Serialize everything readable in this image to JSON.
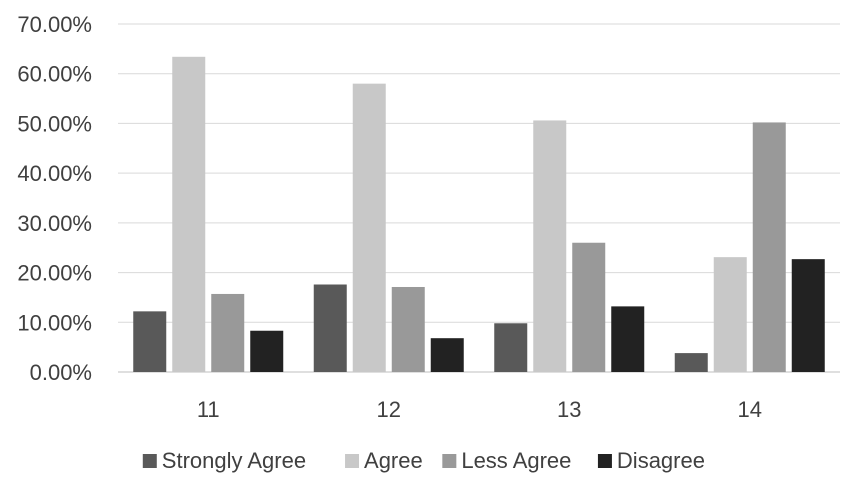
{
  "chart_data": {
    "type": "bar",
    "categories": [
      "11",
      "12",
      "13",
      "14"
    ],
    "series": [
      {
        "name": "Strongly Agree",
        "color": "#595959",
        "values": [
          12.2,
          17.6,
          9.8,
          3.8
        ]
      },
      {
        "name": "Agree",
        "color": "#c8c8c8",
        "values": [
          63.4,
          58.0,
          50.6,
          23.1
        ]
      },
      {
        "name": "Less Agree",
        "color": "#999999",
        "values": [
          15.7,
          17.1,
          26.0,
          50.2
        ]
      },
      {
        "name": "Disagree",
        "color": "#222222",
        "values": [
          8.3,
          6.8,
          13.2,
          22.7
        ]
      }
    ],
    "y_ticks": [
      "0.00%",
      "10.00%",
      "20.00%",
      "30.00%",
      "40.00%",
      "50.00%",
      "60.00%",
      "70.00%"
    ],
    "ylim": [
      0,
      70
    ],
    "grid": true,
    "legend_position": "bottom"
  }
}
